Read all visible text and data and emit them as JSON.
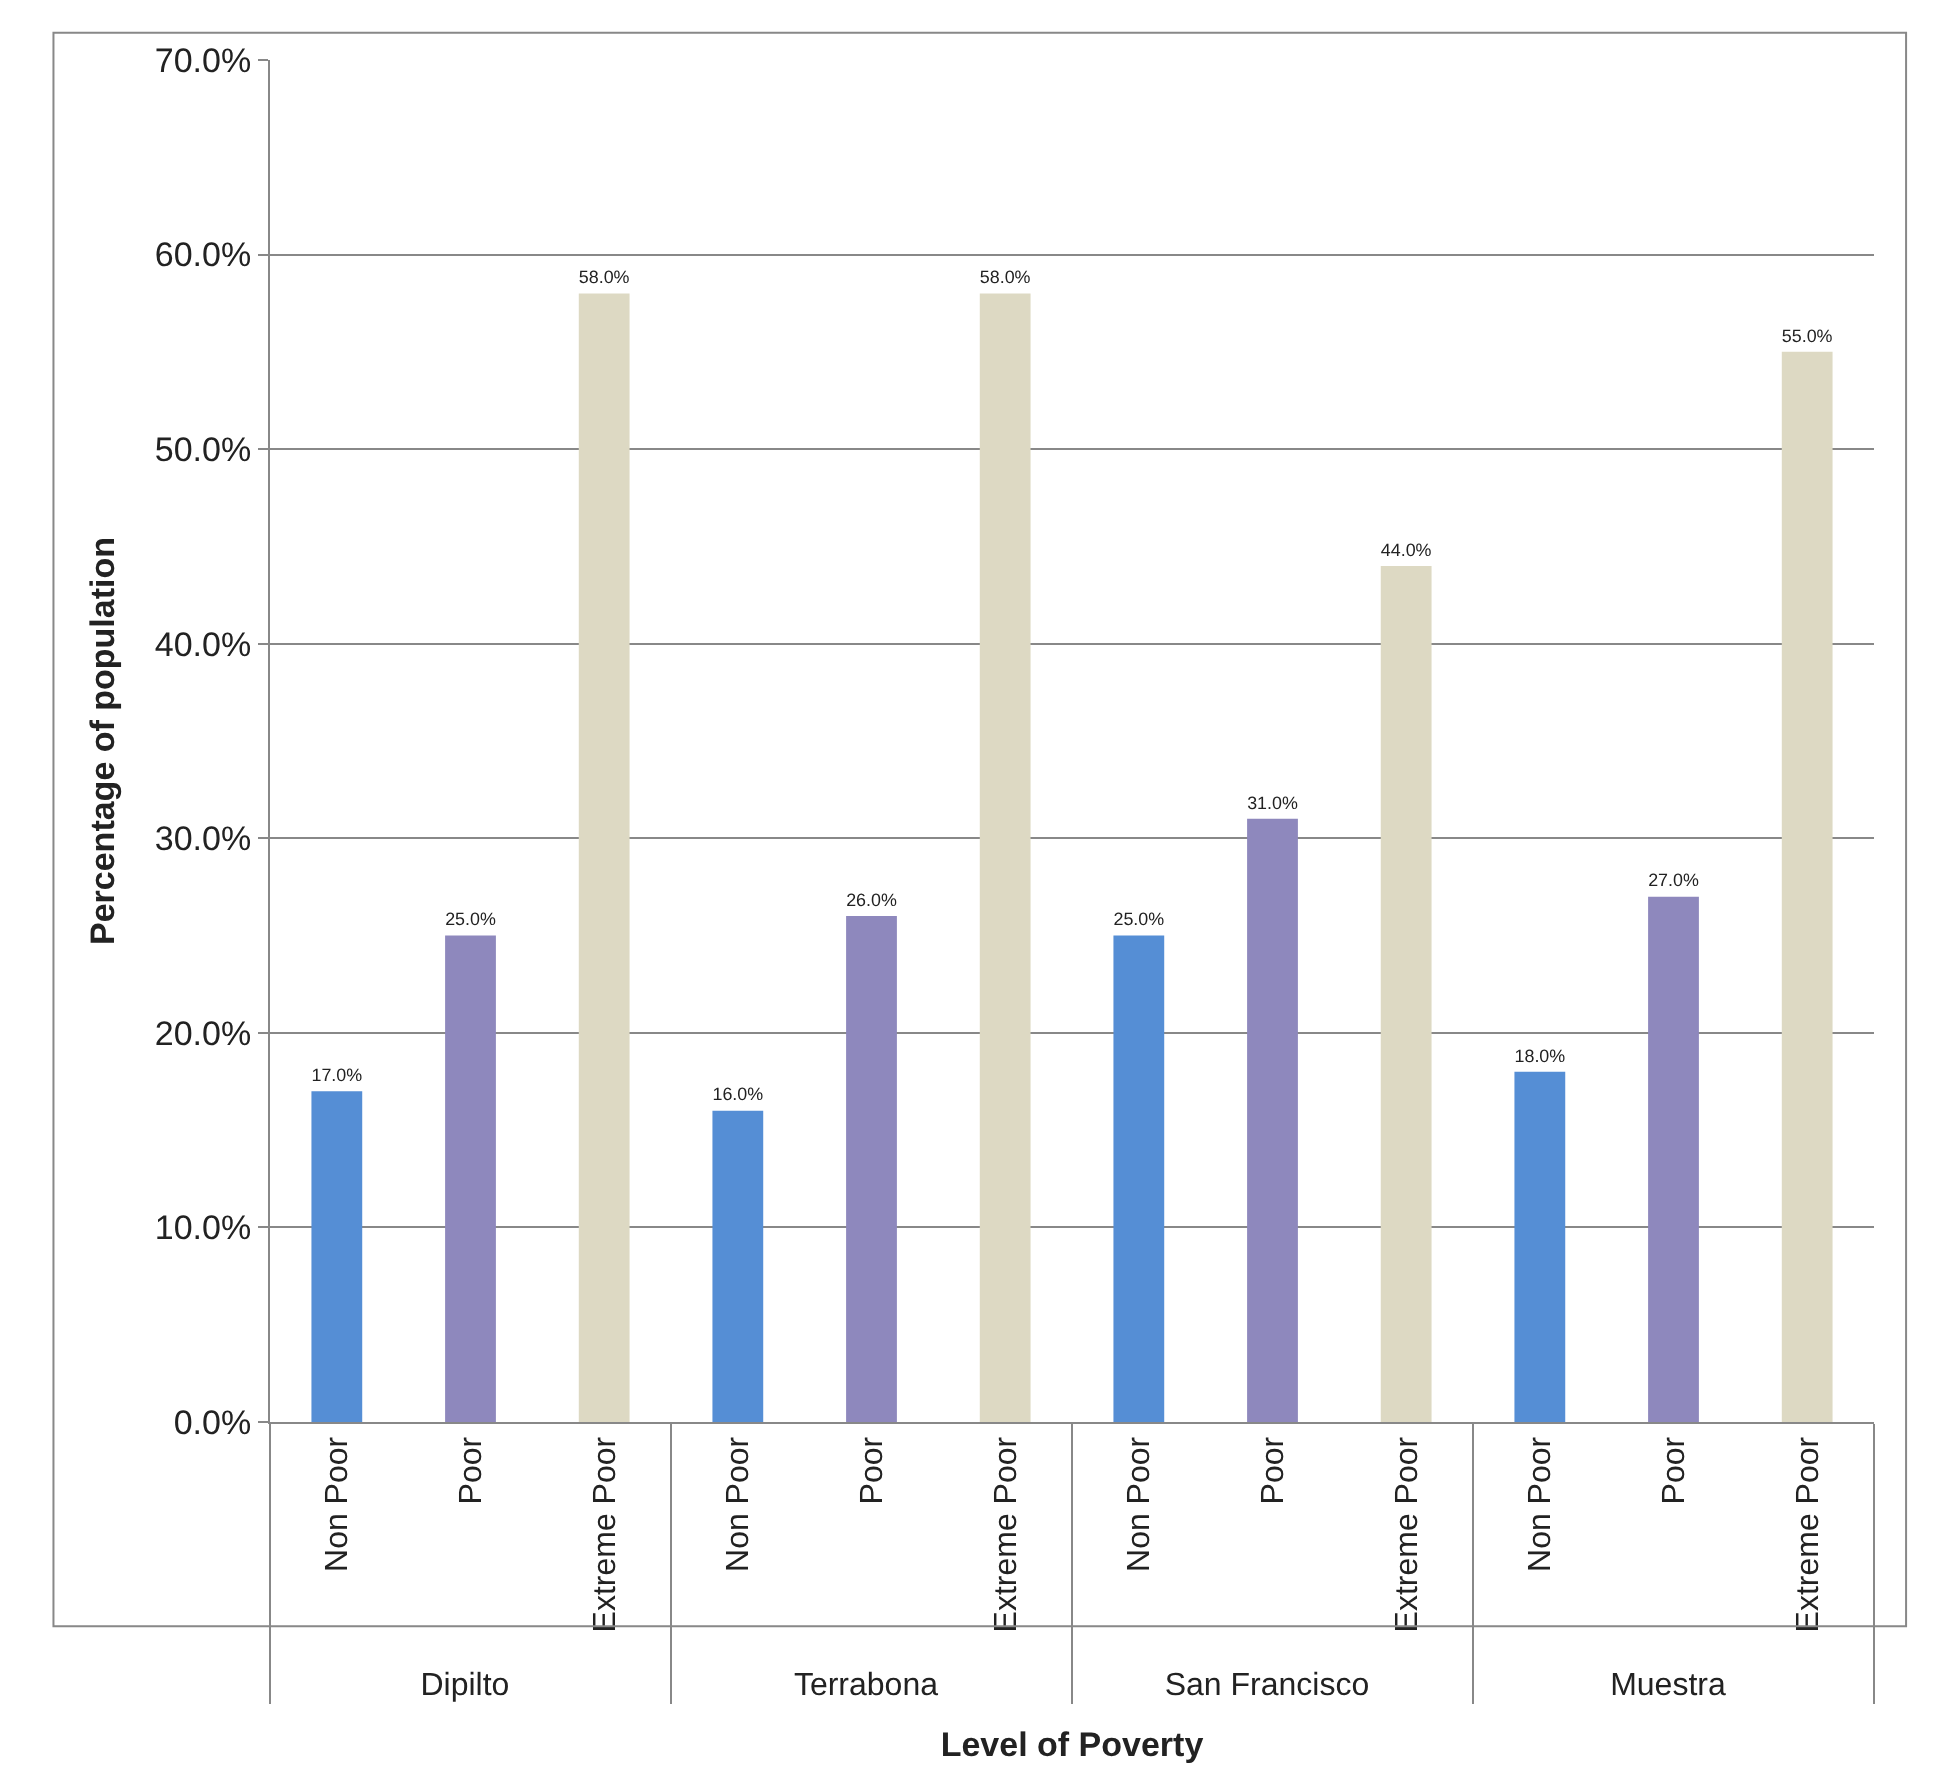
{
  "chart_data": {
    "type": "bar",
    "xlabel": "Level of Poverty",
    "ylabel": "Percentage of population",
    "categories": [
      "Dipilto",
      "Terrabona",
      "San Francisco",
      "Muestra"
    ],
    "series": [
      {
        "name": "Non Poor",
        "color": "#558ed5",
        "values": [
          17.0,
          16.0,
          25.0,
          18.0
        ],
        "value_labels": [
          "17.0%",
          "16.0%",
          "25.0%",
          "18.0%"
        ]
      },
      {
        "name": "Poor",
        "color": "#8e88bd",
        "values": [
          25.0,
          26.0,
          31.0,
          27.0
        ],
        "value_labels": [
          "25.0%",
          "26.0%",
          "31.0%",
          "27.0%"
        ]
      },
      {
        "name": "Extreme Poor",
        "color": "#ddd9c3",
        "values": [
          58.0,
          58.0,
          44.0,
          55.0
        ],
        "value_labels": [
          "58.0%",
          "58.0%",
          "44.0%",
          "55.0%"
        ]
      }
    ],
    "ylim": [
      0,
      70
    ],
    "yticks": [
      {
        "value": 0,
        "label": "0.0%"
      },
      {
        "value": 10,
        "label": "10.0%"
      },
      {
        "value": 20,
        "label": "20.0%"
      },
      {
        "value": 30,
        "label": "30.0%"
      },
      {
        "value": 40,
        "label": "40.0%"
      },
      {
        "value": 50,
        "label": "50.0%"
      },
      {
        "value": 60,
        "label": "60.0%"
      },
      {
        "value": 70,
        "label": "70.0%"
      }
    ],
    "grid": "y",
    "legend": false
  }
}
